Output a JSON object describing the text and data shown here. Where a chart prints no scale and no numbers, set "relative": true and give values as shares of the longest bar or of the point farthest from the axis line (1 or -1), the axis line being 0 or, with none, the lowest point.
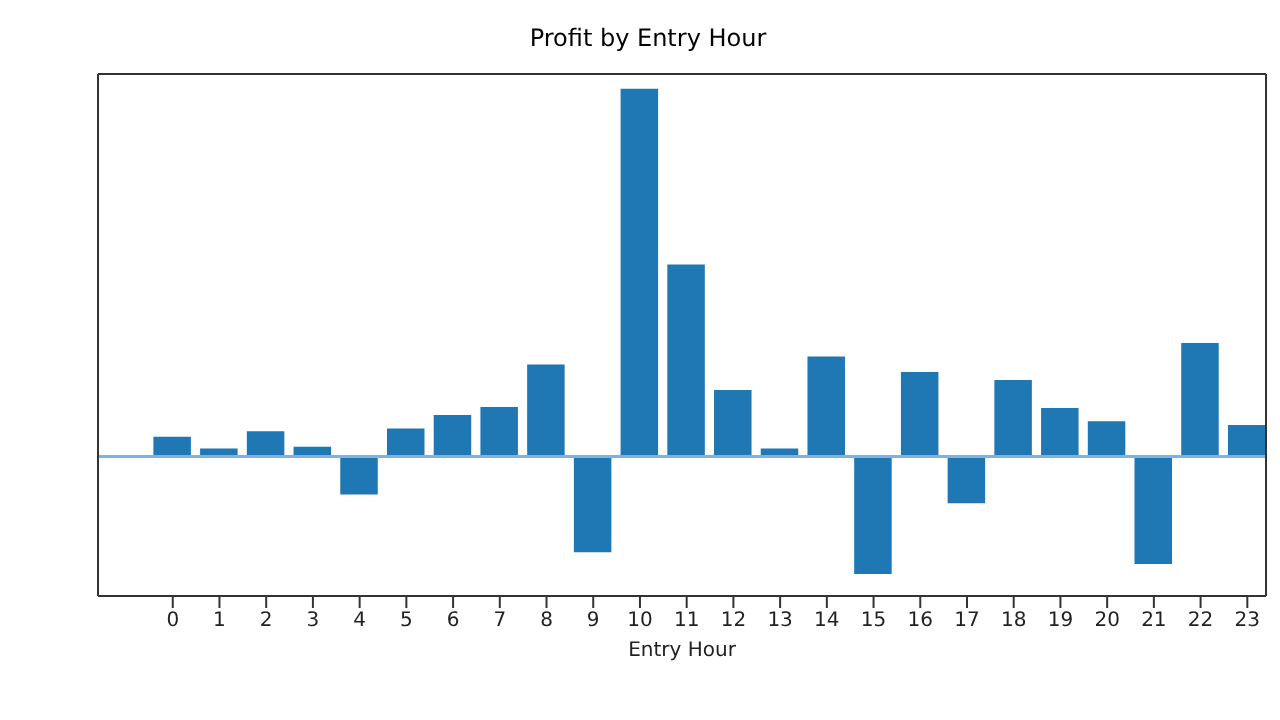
{
  "chart_data": {
    "type": "bar",
    "title": "Profit by Entry Hour",
    "xlabel": "Entry Hour",
    "relative": true,
    "x": [
      0,
      1,
      2,
      3,
      4,
      5,
      6,
      7,
      8,
      9,
      10,
      11,
      12,
      13,
      14,
      15,
      16,
      17,
      18,
      19,
      20,
      21,
      22,
      23
    ],
    "xlim": [
      -1.6,
      23.4
    ],
    "xticks": [
      0,
      1,
      2,
      3,
      4,
      5,
      6,
      7,
      8,
      9,
      10,
      11,
      12,
      13,
      14,
      15,
      16,
      17,
      18,
      19,
      20,
      21,
      22,
      23
    ],
    "values": [
      0.054,
      0.022,
      0.069,
      0.027,
      -0.103,
      0.076,
      0.113,
      0.135,
      0.25,
      -0.26,
      1,
      0.522,
      0.181,
      0.022,
      0.272,
      -0.319,
      0.23,
      -0.127,
      0.208,
      0.132,
      0.096,
      -0.292,
      0.309,
      0.086
    ],
    "color": "#1f77b4",
    "ref_lines": [
      {
        "axis": "y",
        "value": 0,
        "color": "#7fb2dc"
      }
    ],
    "grid": false,
    "legend": false
  }
}
